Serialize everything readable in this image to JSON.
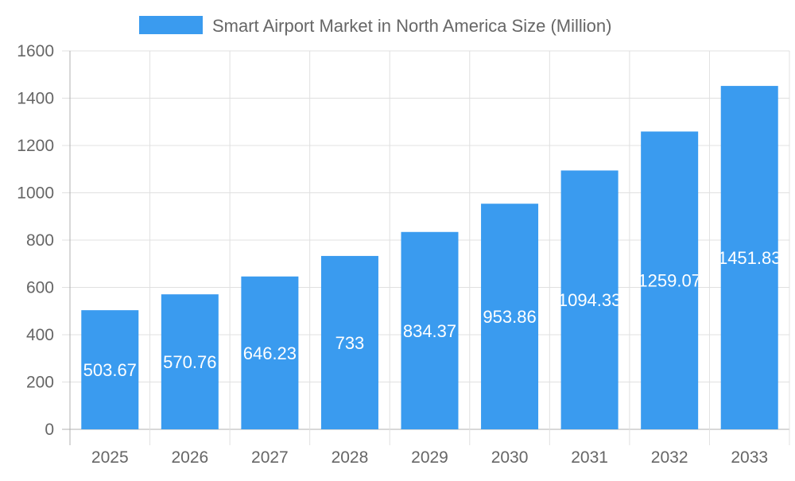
{
  "chart_data": {
    "type": "bar",
    "categories": [
      "2025",
      "2026",
      "2027",
      "2028",
      "2029",
      "2030",
      "2031",
      "2032",
      "2033"
    ],
    "series": [
      {
        "name": "Smart Airport Market in North America Size (Million)",
        "values": [
          503.67,
          570.76,
          646.23,
          733,
          834.37,
          953.86,
          1094.33,
          1259.07,
          1451.83
        ]
      }
    ],
    "ylim": [
      0,
      1600
    ],
    "yticks": [
      0,
      200,
      400,
      600,
      800,
      1000,
      1200,
      1400,
      1600
    ],
    "grid": true,
    "legend": "top-center",
    "colors": {
      "bar": "#3a9bef",
      "grid": "#e0e0e0",
      "axis": "#b0b0b0",
      "text": "#666666",
      "label": "#ffffff"
    }
  }
}
